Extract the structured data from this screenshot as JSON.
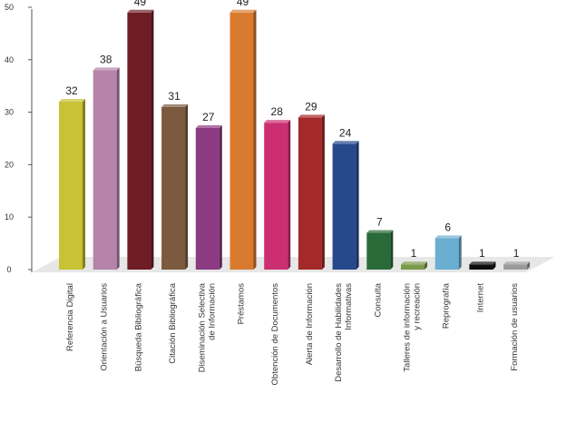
{
  "chart_data": {
    "type": "bar",
    "title": "",
    "xlabel": "",
    "ylabel": "",
    "ylim": [
      0,
      50
    ],
    "yticks": [
      "0",
      "10",
      "20",
      "30",
      "40",
      "50"
    ],
    "grid": false,
    "legend": "none",
    "categories": [
      [
        "Referencia Digital"
      ],
      [
        "Orientación a Usuarios"
      ],
      [
        "Búsqueda Bibliográfica"
      ],
      [
        "Citación Bibliográfica"
      ],
      [
        "Diseminación Selectiva",
        "de Información"
      ],
      [
        "Préstamos"
      ],
      [
        "Obtención de Documentos"
      ],
      [
        "Alerta de Información"
      ],
      [
        "Desarrollo de Habilidades",
        "Informativas"
      ],
      [
        "Consulta"
      ],
      [
        "Talleres de información",
        "y recreación"
      ],
      [
        "Reprografía"
      ],
      [
        "Internet"
      ],
      [
        "Formación de usuarios"
      ]
    ],
    "values": [
      32,
      38,
      49,
      31,
      27,
      49,
      28,
      29,
      24,
      7,
      1,
      6,
      1,
      1
    ],
    "colors": [
      "#c8c234",
      "#b583a9",
      "#6e1d24",
      "#7b5a3e",
      "#8c3a82",
      "#d87b2f",
      "#cc2e72",
      "#a32a28",
      "#27498c",
      "#2a6a38",
      "#7a9a4a",
      "#6aaed2",
      "#0d0d0d",
      "#9a9a9a"
    ]
  }
}
